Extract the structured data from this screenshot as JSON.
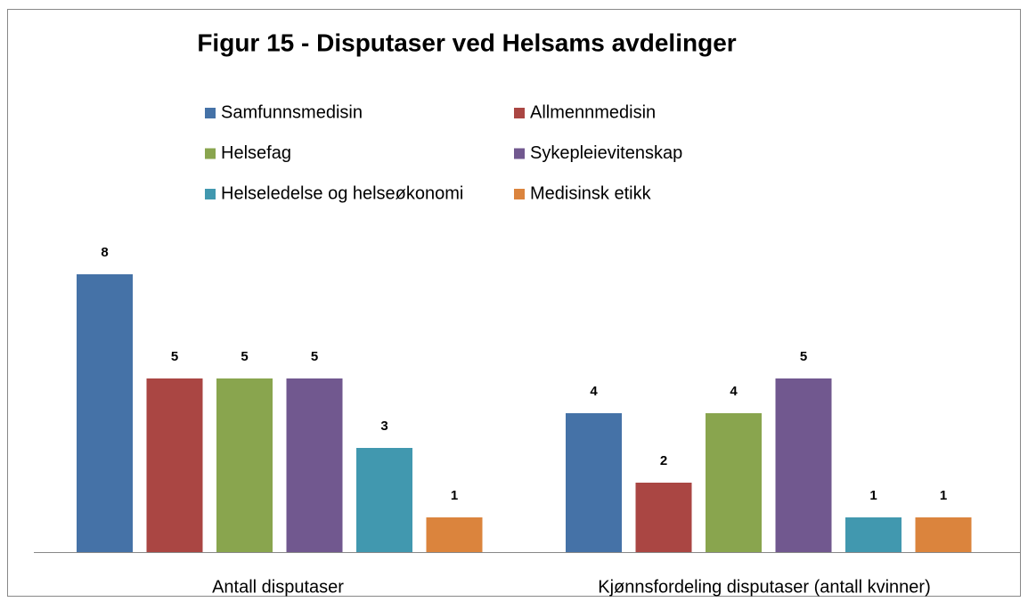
{
  "chart_data": {
    "type": "bar",
    "title": "Figur 15 - Disputaser ved Helsams avdelinger",
    "categories": [
      "Antall disputaser",
      "Kjønnsfordeling disputaser (antall kvinner)"
    ],
    "series": [
      {
        "name": "Samfunnsmedisin",
        "color": "#4572a7",
        "values": [
          8,
          4
        ]
      },
      {
        "name": "Allmennmedisin",
        "color": "#aa4643",
        "values": [
          5,
          2
        ]
      },
      {
        "name": "Helsefag",
        "color": "#89a54e",
        "values": [
          5,
          4
        ]
      },
      {
        "name": "Sykepleievitenskap",
        "color": "#71588f",
        "values": [
          5,
          5
        ]
      },
      {
        "name": "Helseledelse og helseøkonomi",
        "color": "#4198af",
        "values": [
          3,
          1
        ]
      },
      {
        "name": "Medisinsk etikk",
        "color": "#db843d",
        "values": [
          1,
          1
        ]
      }
    ]
  }
}
